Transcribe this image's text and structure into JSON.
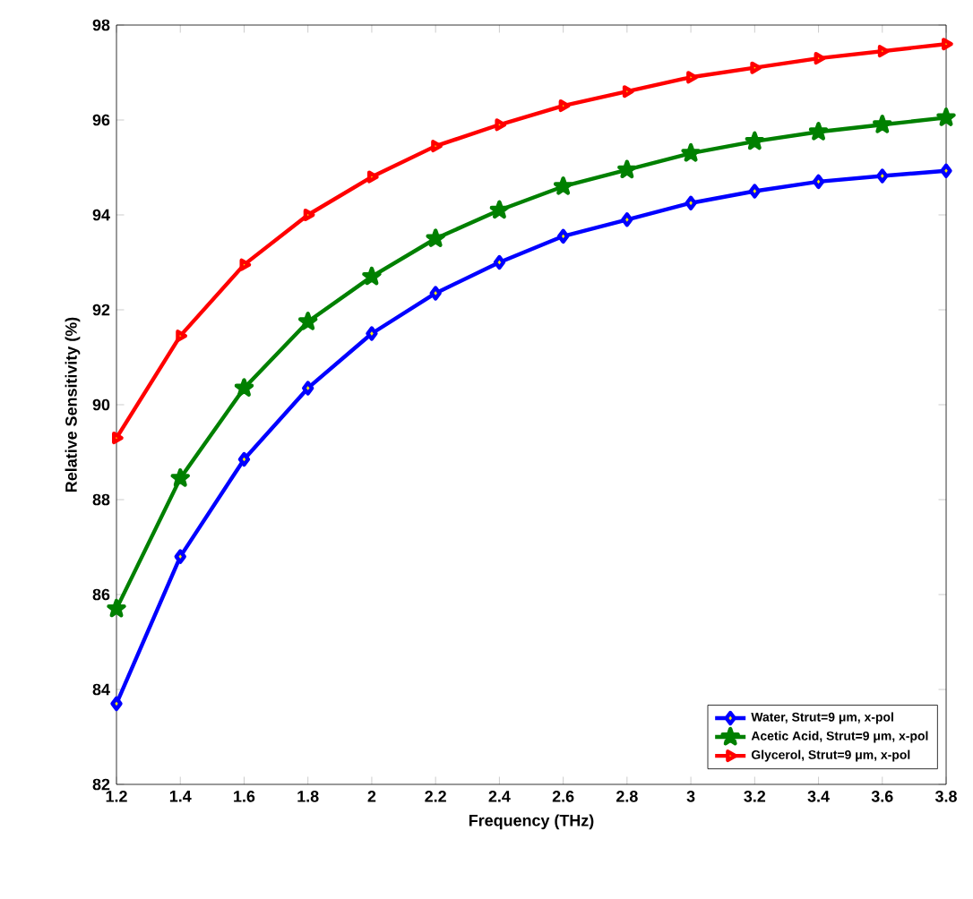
{
  "chart_data": {
    "type": "line",
    "xlabel": "Frequency (THz)",
    "ylabel": "Relative Sensitivity (%)",
    "x": [
      1.2,
      1.4,
      1.6,
      1.8,
      2.0,
      2.2,
      2.4,
      2.6,
      2.8,
      3.0,
      3.2,
      3.4,
      3.6,
      3.8
    ],
    "series": [
      {
        "name": "Water, Strut=9 μm, x-pol",
        "color": "#0000ff",
        "marker": "diamond",
        "values": [
          83.7,
          86.8,
          88.85,
          90.35,
          91.5,
          92.35,
          93.0,
          93.55,
          93.9,
          94.25,
          94.5,
          94.7,
          94.82,
          94.93
        ]
      },
      {
        "name": "Acetic Acid, Strut=9 μm, x-pol",
        "color": "#008000",
        "marker": "star",
        "values": [
          85.7,
          88.45,
          90.35,
          91.75,
          92.7,
          93.5,
          94.1,
          94.6,
          94.95,
          95.3,
          95.55,
          95.75,
          95.9,
          96.05
        ]
      },
      {
        "name": "Glycerol, Strut=9 μm, x-pol",
        "color": "#ff0000",
        "marker": "triangle",
        "values": [
          89.3,
          91.45,
          92.95,
          94.0,
          94.8,
          95.45,
          95.9,
          96.3,
          96.6,
          96.9,
          97.1,
          97.3,
          97.45,
          97.6
        ]
      }
    ],
    "xlim": [
      1.2,
      3.8
    ],
    "ylim": [
      82,
      98
    ],
    "xticks": [
      1.2,
      1.4,
      1.6,
      1.8,
      2,
      2.2,
      2.4,
      2.6,
      2.8,
      3,
      3.2,
      3.4,
      3.6,
      3.8
    ],
    "yticks": [
      82,
      84,
      86,
      88,
      90,
      92,
      94,
      96,
      98
    ],
    "grid": false,
    "legend": "bottom right",
    "line_style": "solid"
  }
}
